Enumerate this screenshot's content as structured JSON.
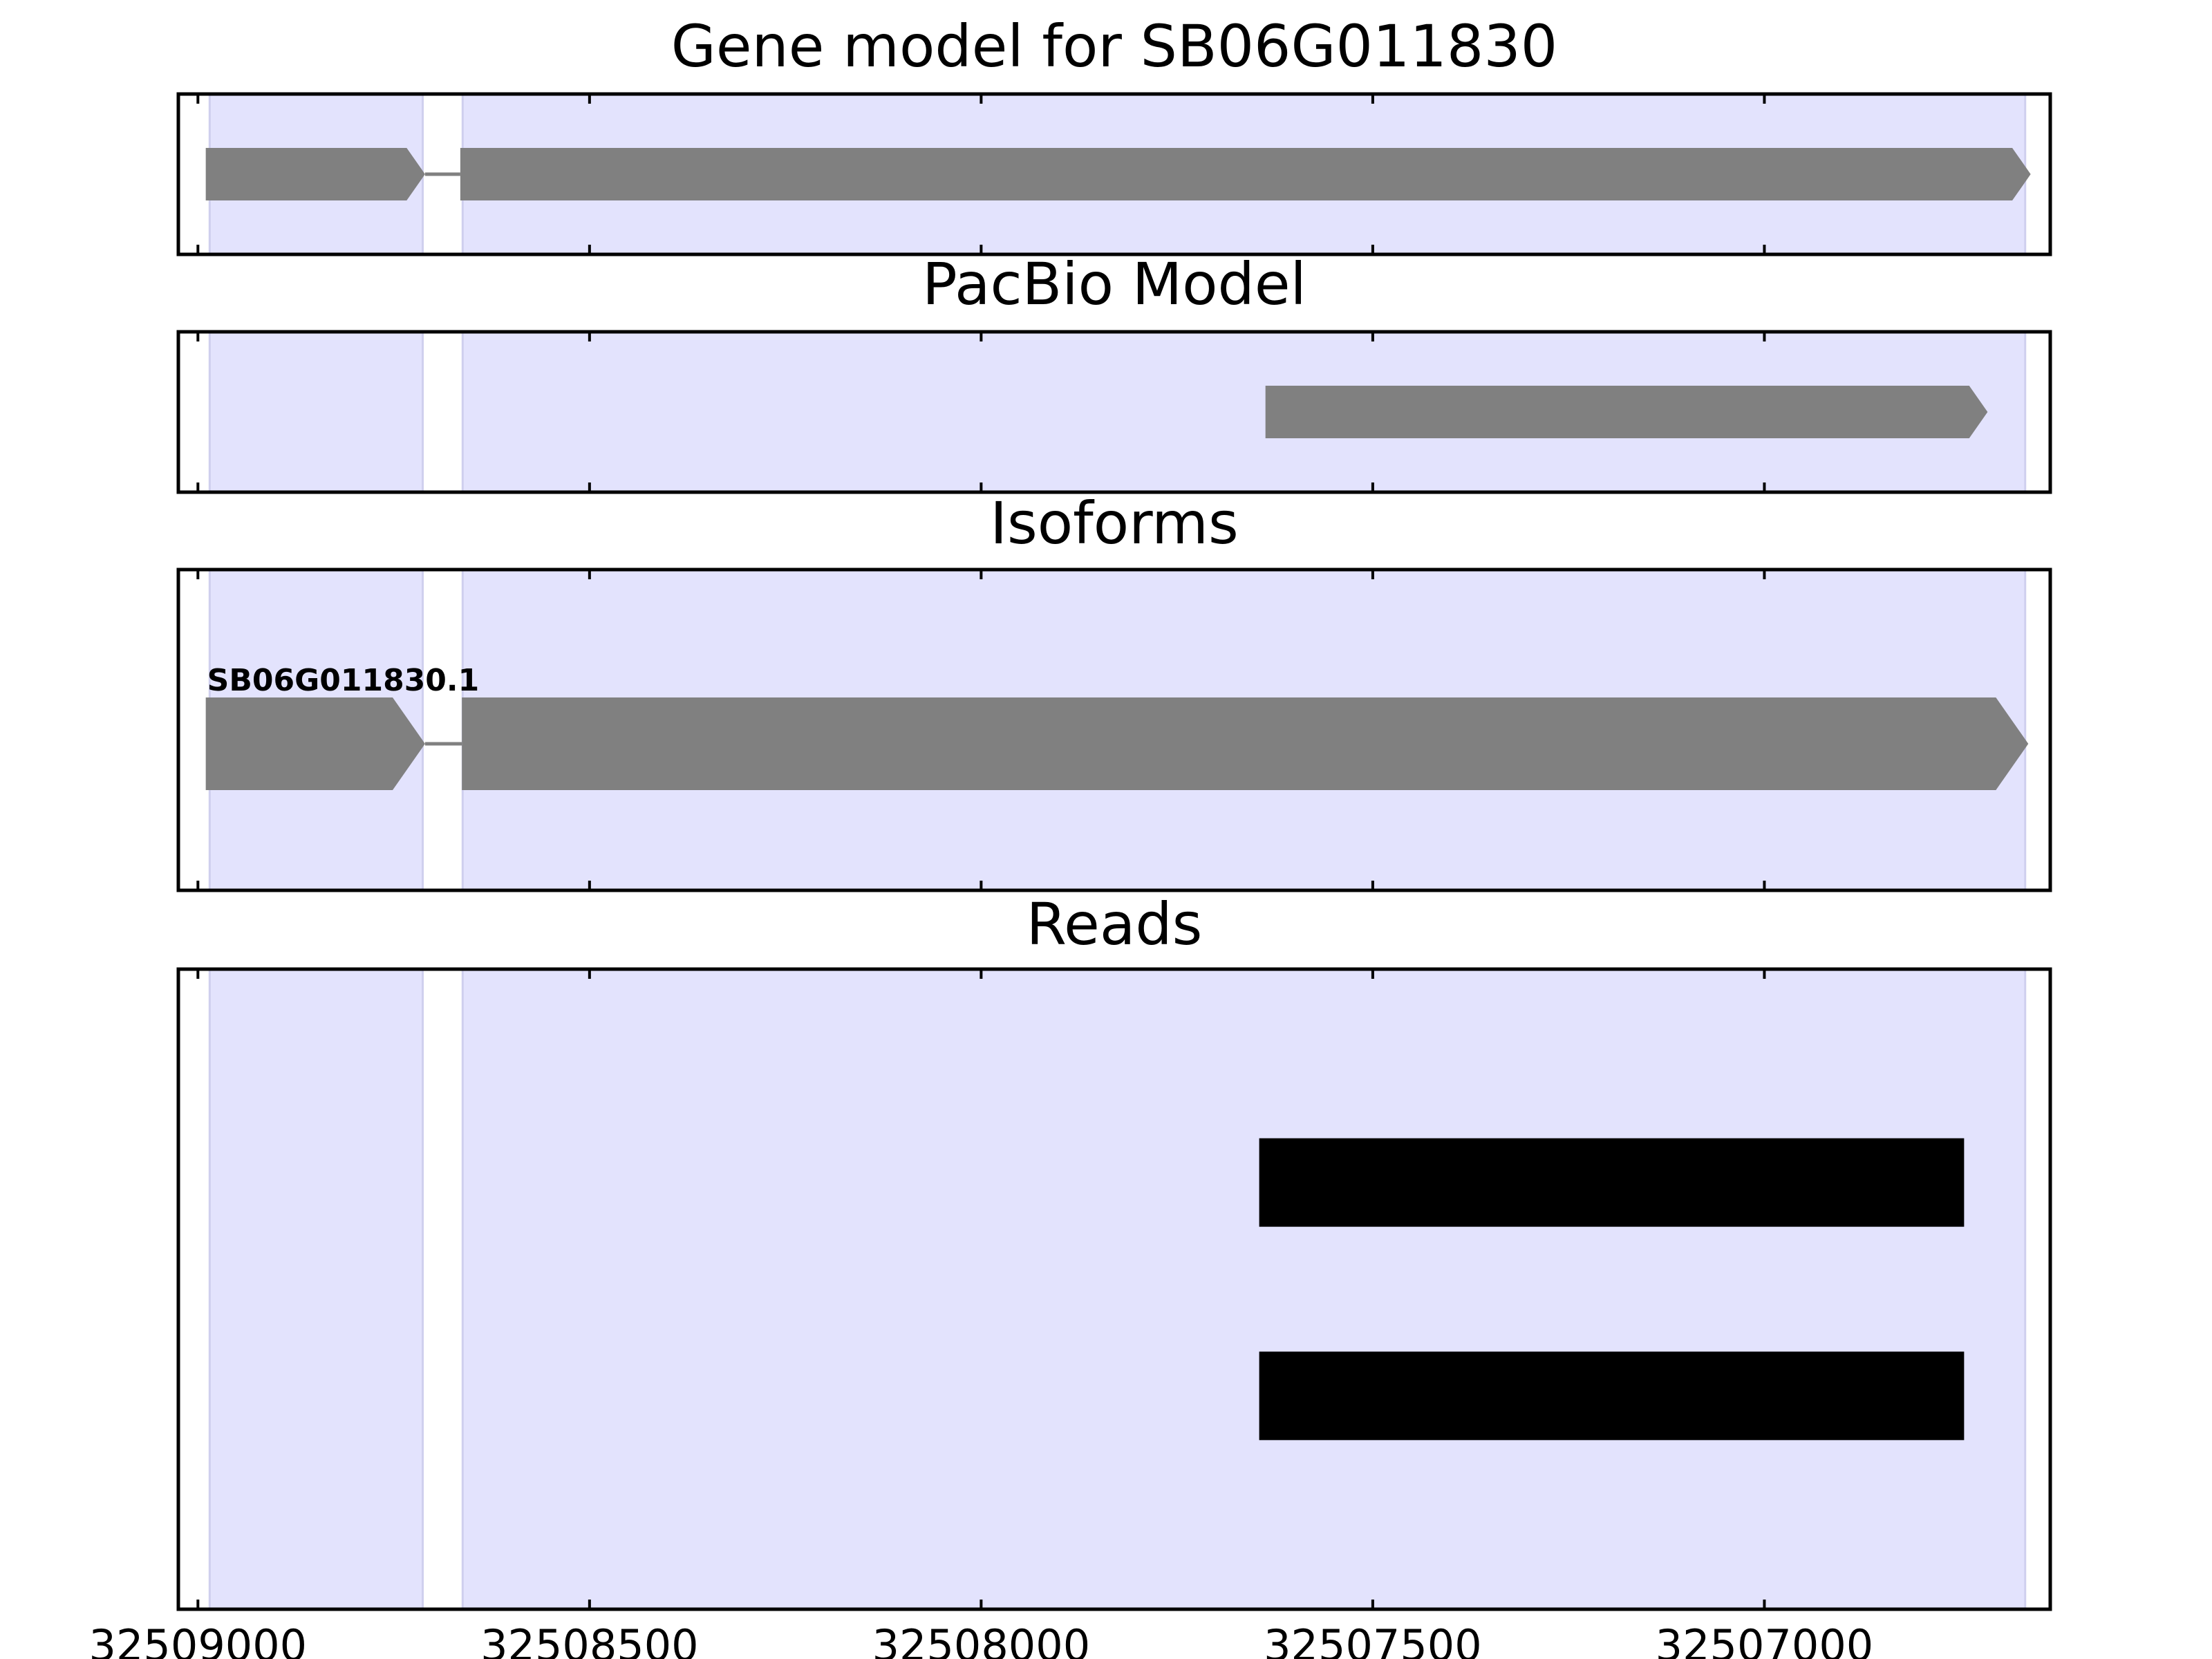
{
  "chart_data": {
    "type": "gene-track",
    "x_axis": {
      "ticks": [
        32509000,
        32508500,
        32508000,
        32507500,
        32507000
      ],
      "tick_labels": [
        "32509000",
        "32508500",
        "32508000",
        "32507500",
        "32507000"
      ],
      "xlim": [
        32509025,
        32506635
      ],
      "reversed": true
    },
    "colors": {
      "exon_fill": "#808080",
      "read_fill": "#000000",
      "region_fill": "#e3e3fd",
      "region_edge": "#cfcfee",
      "frame": "#000000"
    },
    "shaded_regions": [
      {
        "start": 32508985,
        "end": 32508713
      },
      {
        "start": 32508662,
        "end": 32506667
      }
    ],
    "panels": [
      {
        "key": "gene_model",
        "title": "Gene model for SB06G011830",
        "features": [
          {
            "label": "",
            "strand": "-",
            "exons": [
              {
                "start": 32508990,
                "end": 32508710
              },
              {
                "start": 32508665,
                "end": 32506660
              }
            ]
          }
        ]
      },
      {
        "key": "pacbio",
        "title": "PacBio Model",
        "features": [
          {
            "label": "",
            "strand": "-",
            "exons": [
              {
                "start": 32507637,
                "end": 32506715
              }
            ]
          }
        ]
      },
      {
        "key": "isoforms",
        "title": "Isoforms",
        "features": [
          {
            "label": "SB06G011830.1",
            "strand": "-",
            "exons": [
              {
                "start": 32508990,
                "end": 32508710
              },
              {
                "start": 32508663,
                "end": 32506663
              }
            ]
          }
        ]
      },
      {
        "key": "reads",
        "title": "Reads",
        "reads": [
          {
            "start": 32507645,
            "end": 32506745
          },
          {
            "start": 32507645,
            "end": 32506745
          }
        ]
      }
    ]
  }
}
